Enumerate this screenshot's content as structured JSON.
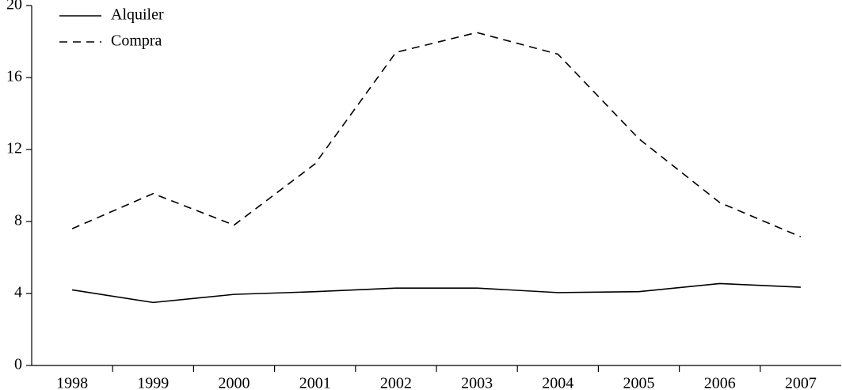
{
  "chart_data": {
    "type": "line",
    "categories": [
      "1998",
      "1999",
      "2000",
      "2001",
      "2002",
      "2003",
      "2004",
      "2005",
      "2006",
      "2007"
    ],
    "series": [
      {
        "name": "Alquiler",
        "color": "#000000",
        "dash": "solid",
        "values": [
          4.2,
          3.5,
          3.95,
          4.1,
          4.3,
          4.3,
          4.05,
          4.1,
          4.55,
          4.35
        ]
      },
      {
        "name": "Compra",
        "color": "#000000",
        "dash": "dashed",
        "values": [
          7.6,
          9.55,
          7.8,
          11.2,
          17.4,
          18.5,
          17.3,
          12.6,
          9.05,
          7.15
        ]
      }
    ],
    "ylim": [
      0,
      20
    ],
    "yticks": [
      0,
      4,
      8,
      12,
      16,
      20
    ],
    "legend": "top-left"
  }
}
